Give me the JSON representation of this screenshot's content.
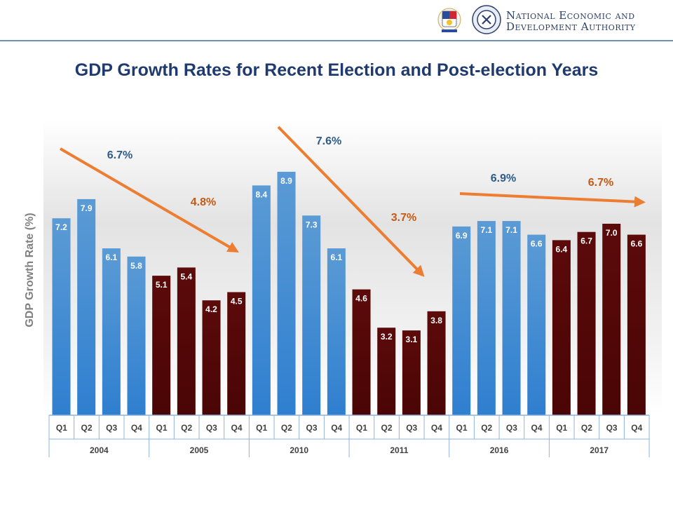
{
  "header": {
    "org_line1": "National Economic and",
    "org_line2": "Development Authority"
  },
  "colors": {
    "title": "#1f3a6e",
    "bar_blue": "#5b9bd5",
    "bar_maroon": "#5c0a0a",
    "arrow": "#ed7d31",
    "label_blue": "#2e5c8a",
    "label_orange": "#c55a11"
  },
  "chart_data": {
    "type": "bar",
    "title": "GDP Growth Rates for Recent Election and Post-election Years",
    "ylabel": "GDP Growth Rate (%)",
    "ylim": [
      0,
      10
    ],
    "grid": false,
    "quarters": [
      "Q1",
      "Q2",
      "Q3",
      "Q4"
    ],
    "years": [
      {
        "year": "2004",
        "kind": "election",
        "values": [
          7.2,
          7.9,
          6.1,
          5.8
        ]
      },
      {
        "year": "2005",
        "kind": "post-election",
        "values": [
          5.1,
          5.4,
          4.2,
          4.5
        ]
      },
      {
        "year": "2010",
        "kind": "election",
        "values": [
          8.4,
          8.9,
          7.3,
          6.1
        ]
      },
      {
        "year": "2011",
        "kind": "post-election",
        "values": [
          4.6,
          3.2,
          3.1,
          3.8
        ]
      },
      {
        "year": "2016",
        "kind": "election",
        "values": [
          6.9,
          7.1,
          7.1,
          6.6
        ]
      },
      {
        "year": "2017",
        "kind": "post-election",
        "values": [
          6.4,
          6.7,
          7.0,
          6.6
        ]
      }
    ],
    "annotations": [
      {
        "text": "6.7%",
        "color": "blue"
      },
      {
        "text": "4.8%",
        "color": "orange"
      },
      {
        "text": "7.6%",
        "color": "blue"
      },
      {
        "text": "3.7%",
        "color": "orange"
      },
      {
        "text": "6.9%",
        "color": "blue"
      },
      {
        "text": "6.7%",
        "color": "orange"
      }
    ]
  }
}
